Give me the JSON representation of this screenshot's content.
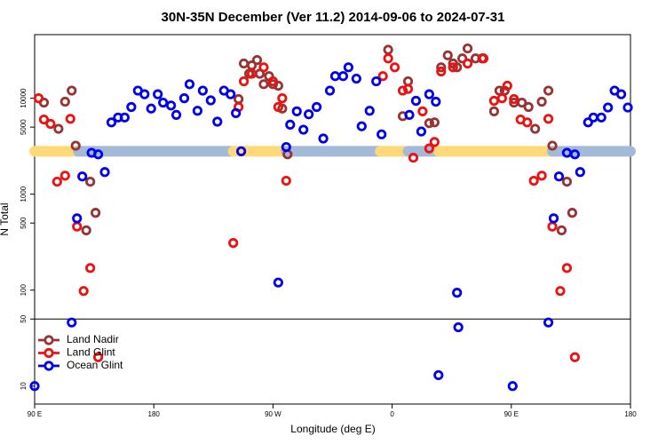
{
  "chart_data": {
    "type": "scatter",
    "title": "30N-35N December (Ver 11.2)   2014-09-06 to 2024-07-31",
    "x_label": "Longitude (deg E)",
    "y_label": "N Total",
    "xlim": [
      90,
      540
    ],
    "xticks": [
      {
        "value": 90,
        "label": "90 E"
      },
      {
        "value": 180,
        "label": "180"
      },
      {
        "value": 270,
        "label": "90 W"
      },
      {
        "value": 360,
        "label": "0"
      },
      {
        "value": 450,
        "label": "90 E"
      },
      {
        "value": 540,
        "label": "180"
      }
    ],
    "ylim": [
      6.5,
      46000
    ],
    "yticks": [
      10,
      50,
      100,
      500,
      1000,
      5000,
      10000
    ],
    "y_log": true,
    "hlines": [
      50
    ],
    "legend": "lower left",
    "surface_band": {
      "y": 2800,
      "segments": [
        {
          "xlim": [
            90,
            123
          ],
          "color": "#ffd878"
        },
        {
          "xlim": [
            123,
            240
          ],
          "color": "#a4b8d8"
        },
        {
          "xlim": [
            240,
            280
          ],
          "color": "#ffd878"
        },
        {
          "xlim": [
            280,
            351
          ],
          "color": "#a4b8d8"
        },
        {
          "xlim": [
            351,
            372
          ],
          "color": "#ffd878"
        },
        {
          "xlim": [
            372,
            395
          ],
          "color": "#a4b8d8"
        },
        {
          "xlim": [
            395,
            481
          ],
          "color": "#ffd878"
        },
        {
          "xlim": [
            481,
            540
          ],
          "color": "#a4b8d8"
        }
      ]
    },
    "series": [
      {
        "name": "Land Nadir",
        "color": "#993333",
        "x": [
          97,
          108,
          113,
          118,
          121,
          129,
          132,
          136,
          244,
          248,
          252,
          254,
          258,
          260,
          263,
          267,
          270,
          274,
          277,
          281,
          357,
          368,
          372,
          388,
          392,
          397,
          402,
          406,
          409,
          413,
          417,
          423,
          428,
          437,
          441,
          445,
          452,
          458,
          463,
          468,
          473,
          478,
          481,
          488,
          492,
          496
        ],
        "values": [
          9000,
          4800,
          9200,
          12000,
          3200,
          420,
          1350,
          640,
          9800,
          23000,
          18000,
          22000,
          25000,
          18000,
          14000,
          17000,
          14000,
          13500,
          7800,
          2600,
          32000,
          6500,
          15000,
          5500,
          5600,
          21000,
          28000,
          23000,
          21000,
          26000,
          33000,
          26000,
          26000,
          7300,
          12000,
          12000,
          9000,
          9000,
          8100,
          4800,
          9200,
          12000,
          3200,
          420,
          1350,
          640
        ]
      },
      {
        "name": "Land Glint",
        "color": "#ee1111",
        "x": [
          93,
          97,
          102,
          107,
          113,
          117,
          122,
          127,
          132,
          138,
          240,
          244,
          248,
          254,
          263,
          270,
          274,
          277,
          280,
          353,
          357,
          362,
          368,
          372,
          376,
          383,
          388,
          392,
          397,
          406,
          417,
          429,
          437,
          443,
          447,
          452,
          457,
          462,
          467,
          473,
          478,
          481,
          487,
          492,
          498
        ],
        "values": [
          10000,
          6000,
          5400,
          1350,
          1560,
          6100,
          460,
          98,
          170,
          20,
          310,
          8100,
          15000,
          18000,
          21000,
          15000,
          8100,
          10000,
          1380,
          17000,
          26000,
          21000,
          12000,
          12500,
          2400,
          7300,
          3000,
          3500,
          19000,
          21000,
          23000,
          26000,
          9400,
          10000,
          13500,
          9800,
          6000,
          5600,
          1380,
          1560,
          6100,
          460,
          98,
          170,
          20
        ]
      },
      {
        "name": "Ocean Glint",
        "color": "#0000ee",
        "x": [
          90,
          118,
          122,
          126,
          133,
          138,
          143,
          148,
          153,
          158,
          163,
          168,
          173,
          178,
          183,
          187,
          193,
          197,
          203,
          207,
          213,
          217,
          223,
          228,
          233,
          238,
          242,
          246,
          274,
          280,
          283,
          288,
          293,
          297,
          303,
          308,
          313,
          317,
          323,
          327,
          333,
          337,
          343,
          348,
          352,
          373,
          378,
          382,
          388,
          393,
          395,
          409,
          410,
          451,
          478,
          482,
          486,
          492,
          498,
          502,
          508,
          512,
          518,
          523,
          528,
          533,
          538
        ],
        "values": [
          10,
          46,
          560,
          1530,
          2700,
          2600,
          1700,
          5600,
          6300,
          6300,
          8100,
          12000,
          11000,
          7800,
          11000,
          9000,
          8400,
          6700,
          10000,
          14000,
          7400,
          12000,
          9500,
          5700,
          12000,
          11000,
          7000,
          2800,
          120,
          3100,
          5300,
          7300,
          4700,
          6800,
          8100,
          3800,
          12000,
          17000,
          17000,
          21000,
          16000,
          5100,
          7400,
          15000,
          4200,
          6700,
          9400,
          4500,
          11000,
          9200,
          13,
          94,
          41,
          10,
          46,
          560,
          1530,
          2700,
          2600,
          1700,
          5600,
          6300,
          6300,
          8000,
          12000,
          11000,
          8000
        ]
      }
    ]
  }
}
